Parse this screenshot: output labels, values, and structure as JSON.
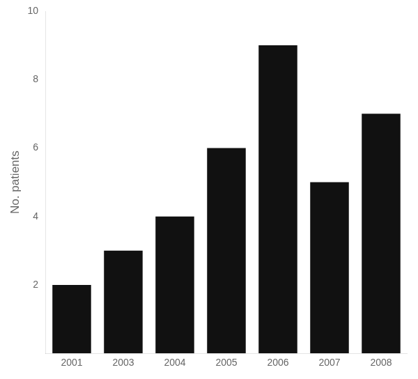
{
  "chart_data": {
    "type": "bar",
    "categories": [
      "2001",
      "2003",
      "2004",
      "2005",
      "2006",
      "2007",
      "2008"
    ],
    "values": [
      2,
      3,
      4,
      6,
      9,
      5,
      7
    ],
    "color": "#111111",
    "ylabel": "No. patients",
    "ylim": [
      0,
      10
    ],
    "yticks": [
      2,
      4,
      6,
      8,
      10
    ],
    "grid": false
  }
}
